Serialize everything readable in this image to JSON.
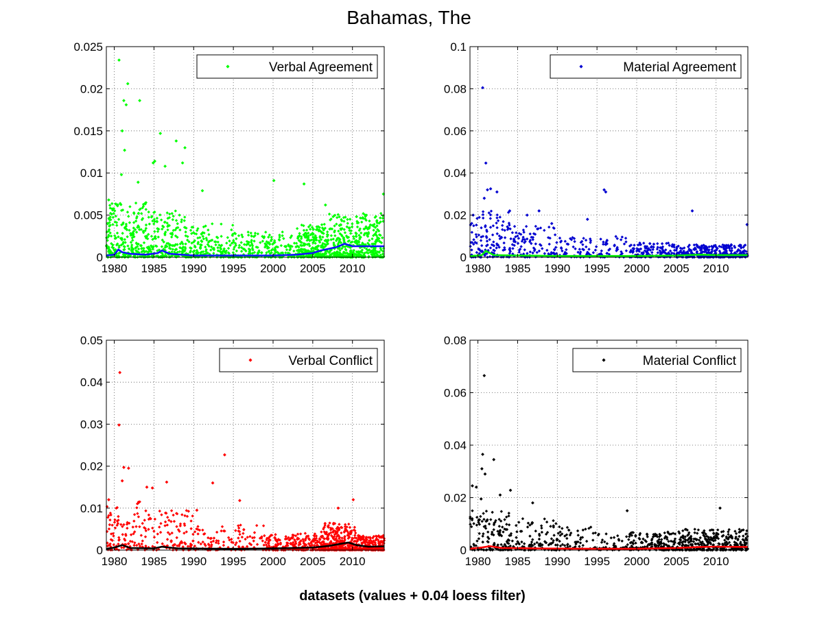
{
  "figure": {
    "title": "Bahamas, The",
    "xlabel": "datasets (values + 0.04 loess filter)"
  },
  "chart_data": [
    {
      "type": "scatter",
      "legend": "Verbal Agreement",
      "legend_position": "top-right",
      "grid": true,
      "xlim": [
        1979,
        2014
      ],
      "xticks": [
        1980,
        1985,
        1990,
        1995,
        2000,
        2005,
        2010
      ],
      "ylim": [
        0,
        0.025
      ],
      "yticks": [
        "0",
        "0.005",
        "0.01",
        "0.015",
        "0.02",
        "0.025"
      ],
      "yticks_values": [
        0,
        0.005,
        0.01,
        0.015,
        0.02,
        0.025
      ],
      "marker_color": "#00ff00",
      "trend_color": "#1010ff",
      "outliers": [
        [
          1980.6,
          0.0234
        ],
        [
          1981.7,
          0.0206
        ],
        [
          1981.2,
          0.0186
        ],
        [
          1981.5,
          0.0181
        ],
        [
          1983.2,
          0.0186
        ],
        [
          1981.0,
          0.015
        ],
        [
          1985.8,
          0.0147
        ],
        [
          1987.8,
          0.0138
        ],
        [
          1981.3,
          0.0127
        ],
        [
          1988.9,
          0.013
        ],
        [
          1985.1,
          0.0114
        ],
        [
          1984.9,
          0.0112
        ],
        [
          1986.4,
          0.0108
        ],
        [
          1988.6,
          0.0112
        ],
        [
          1980.9,
          0.0098
        ],
        [
          1983.0,
          0.0089
        ],
        [
          1991.1,
          0.0079
        ],
        [
          2000.1,
          0.0091
        ],
        [
          2003.9,
          0.0087
        ],
        [
          2006.6,
          0.0062
        ],
        [
          2013.9,
          0.0075
        ],
        [
          1979.3,
          0.0068
        ]
      ],
      "cloud": [
        {
          "from": 1979.0,
          "to": 1984.0,
          "max": 0.0065,
          "n": 260
        },
        {
          "from": 1984.0,
          "to": 1989.0,
          "max": 0.0055,
          "n": 200
        },
        {
          "from": 1989.0,
          "to": 1995.0,
          "max": 0.004,
          "n": 170
        },
        {
          "from": 1995.0,
          "to": 2003.0,
          "max": 0.003,
          "n": 210
        },
        {
          "from": 2003.0,
          "to": 2007.0,
          "max": 0.004,
          "n": 260
        },
        {
          "from": 2007.0,
          "to": 2014.0,
          "max": 0.0052,
          "n": 420
        }
      ],
      "trend": [
        [
          1979,
          0.0002
        ],
        [
          1980,
          0.0003
        ],
        [
          1980.5,
          0.0009
        ],
        [
          1981,
          0.0006
        ],
        [
          1982,
          0.0004
        ],
        [
          1984,
          0.0003
        ],
        [
          1985.5,
          0.0005
        ],
        [
          1986,
          0.0008
        ],
        [
          1987,
          0.0004
        ],
        [
          1990,
          0.0002
        ],
        [
          1995,
          0.0002
        ],
        [
          2000,
          0.0002
        ],
        [
          2003,
          0.0003
        ],
        [
          2005,
          0.0005
        ],
        [
          2006,
          0.0008
        ],
        [
          2008,
          0.0012
        ],
        [
          2009,
          0.0016
        ],
        [
          2010,
          0.0013
        ],
        [
          2012,
          0.0013
        ],
        [
          2014,
          0.0013
        ]
      ]
    },
    {
      "type": "scatter",
      "legend": "Material Agreement",
      "legend_position": "top-right",
      "grid": true,
      "xlim": [
        1979,
        2014
      ],
      "xticks": [
        1980,
        1985,
        1990,
        1995,
        2000,
        2005,
        2010
      ],
      "ylim": [
        0,
        0.1
      ],
      "yticks": [
        "0",
        "0.02",
        "0.04",
        "0.06",
        "0.08",
        "0.1"
      ],
      "yticks_values": [
        0,
        0.02,
        0.04,
        0.06,
        0.08,
        0.1
      ],
      "marker_color": "#0000d0",
      "trend_color": "#00ee00",
      "outliers": [
        [
          1980.6,
          0.0805
        ],
        [
          1981.0,
          0.0447
        ],
        [
          1981.6,
          0.0325
        ],
        [
          1981.2,
          0.032
        ],
        [
          1982.4,
          0.031
        ],
        [
          1980.8,
          0.028
        ],
        [
          1979.4,
          0.02
        ],
        [
          1995.9,
          0.032
        ],
        [
          1996.1,
          0.031
        ],
        [
          1984.0,
          0.022
        ],
        [
          1986.2,
          0.02
        ],
        [
          1987.7,
          0.022
        ],
        [
          2007.0,
          0.022
        ],
        [
          2013.9,
          0.0155
        ],
        [
          1993.8,
          0.018
        ],
        [
          1989.3,
          0.016
        ]
      ],
      "cloud": [
        {
          "from": 1979.0,
          "to": 1984.0,
          "max": 0.022,
          "n": 130
        },
        {
          "from": 1984.0,
          "to": 1990.0,
          "max": 0.015,
          "n": 110
        },
        {
          "from": 1990.0,
          "to": 1999.0,
          "max": 0.01,
          "n": 110
        },
        {
          "from": 1999.0,
          "to": 2005.0,
          "max": 0.007,
          "n": 150
        },
        {
          "from": 2005.0,
          "to": 2014.0,
          "max": 0.006,
          "n": 330
        }
      ],
      "trend": [
        [
          1979,
          0.0005
        ],
        [
          1980.5,
          0.001
        ],
        [
          1981,
          0.003
        ],
        [
          1982,
          0.001
        ],
        [
          1985,
          0.0008
        ],
        [
          1990,
          0.0006
        ],
        [
          1995,
          0.0006
        ],
        [
          2000,
          0.0006
        ],
        [
          2005,
          0.0008
        ],
        [
          2008,
          0.0012
        ],
        [
          2010,
          0.001
        ],
        [
          2014,
          0.001
        ]
      ]
    },
    {
      "type": "scatter",
      "legend": "Verbal Conflict",
      "legend_position": "top-right",
      "grid": true,
      "xlim": [
        1979,
        2014
      ],
      "xticks": [
        1980,
        1985,
        1990,
        1995,
        2000,
        2005,
        2010
      ],
      "ylim": [
        0,
        0.05
      ],
      "yticks": [
        "0",
        "0.01",
        "0.02",
        "0.03",
        "0.04",
        "0.05"
      ],
      "yticks_values": [
        0,
        0.01,
        0.02,
        0.03,
        0.04,
        0.05
      ],
      "marker_color": "#ff0000",
      "trend_color": "#000000",
      "outliers": [
        [
          1980.7,
          0.0423
        ],
        [
          1980.6,
          0.0298
        ],
        [
          1981.2,
          0.0197
        ],
        [
          1981.8,
          0.0195
        ],
        [
          1981.0,
          0.0165
        ],
        [
          1993.9,
          0.0227
        ],
        [
          1992.4,
          0.016
        ],
        [
          1986.6,
          0.0162
        ],
        [
          1984.1,
          0.015
        ],
        [
          1984.8,
          0.0148
        ],
        [
          1995.8,
          0.0118
        ],
        [
          2010.1,
          0.012
        ],
        [
          1990.4,
          0.0095
        ],
        [
          1979.3,
          0.012
        ],
        [
          2008.2,
          0.01
        ]
      ],
      "cloud": [
        {
          "from": 1979.0,
          "to": 1984.0,
          "max": 0.012,
          "n": 110
        },
        {
          "from": 1984.0,
          "to": 1990.0,
          "max": 0.0095,
          "n": 100
        },
        {
          "from": 1990.0,
          "to": 1999.0,
          "max": 0.006,
          "n": 120
        },
        {
          "from": 1999.0,
          "to": 2006.0,
          "max": 0.004,
          "n": 220
        },
        {
          "from": 2006.0,
          "to": 2010.5,
          "max": 0.0065,
          "n": 320
        },
        {
          "from": 2010.5,
          "to": 2014.0,
          "max": 0.0035,
          "n": 190
        }
      ],
      "trend": [
        [
          1979,
          0.0003
        ],
        [
          1980,
          0.0006
        ],
        [
          1981,
          0.0012
        ],
        [
          1982,
          0.0005
        ],
        [
          1985,
          0.0004
        ],
        [
          1986,
          0.0008
        ],
        [
          1988,
          0.0004
        ],
        [
          1995,
          0.0003
        ],
        [
          2000,
          0.0004
        ],
        [
          2005,
          0.0006
        ],
        [
          2007,
          0.001
        ],
        [
          2008.5,
          0.0015
        ],
        [
          2009.5,
          0.0018
        ],
        [
          2010.5,
          0.0012
        ],
        [
          2012,
          0.0008
        ],
        [
          2014,
          0.0009
        ]
      ]
    },
    {
      "type": "scatter",
      "legend": "Material Conflict",
      "legend_position": "top-right",
      "grid": true,
      "xlim": [
        1979,
        2014
      ],
      "xticks": [
        1980,
        1985,
        1990,
        1995,
        2000,
        2005,
        2010
      ],
      "ylim": [
        0,
        0.08
      ],
      "yticks": [
        "0",
        "0.02",
        "0.04",
        "0.06",
        "0.08"
      ],
      "yticks_values": [
        0,
        0.02,
        0.04,
        0.06,
        0.08
      ],
      "marker_color": "#000000",
      "trend_color": "#ff0000",
      "outliers": [
        [
          1980.8,
          0.0665
        ],
        [
          1980.6,
          0.0365
        ],
        [
          1982.0,
          0.0345
        ],
        [
          1980.5,
          0.031
        ],
        [
          1979.3,
          0.0245
        ],
        [
          1979.8,
          0.024
        ],
        [
          1980.9,
          0.029
        ],
        [
          1984.1,
          0.0228
        ],
        [
          1982.8,
          0.021
        ],
        [
          1986.9,
          0.018
        ],
        [
          1998.8,
          0.015
        ],
        [
          2010.5,
          0.016
        ],
        [
          1980.4,
          0.0195
        ]
      ],
      "cloud": [
        {
          "from": 1979.0,
          "to": 1984.0,
          "max": 0.015,
          "n": 130
        },
        {
          "from": 1984.0,
          "to": 1990.0,
          "max": 0.012,
          "n": 100
        },
        {
          "from": 1990.0,
          "to": 1999.0,
          "max": 0.009,
          "n": 110
        },
        {
          "from": 1999.0,
          "to": 2005.0,
          "max": 0.007,
          "n": 160
        },
        {
          "from": 2005.0,
          "to": 2014.0,
          "max": 0.008,
          "n": 340
        }
      ],
      "trend": [
        [
          1979,
          0.0005
        ],
        [
          1980.5,
          0.001
        ],
        [
          1981.5,
          0.0015
        ],
        [
          1983,
          0.0008
        ],
        [
          1988,
          0.0006
        ],
        [
          1995,
          0.0005
        ],
        [
          2000,
          0.0005
        ],
        [
          2005,
          0.0008
        ],
        [
          2008,
          0.0012
        ],
        [
          2010,
          0.0013
        ],
        [
          2014,
          0.0012
        ]
      ]
    }
  ]
}
